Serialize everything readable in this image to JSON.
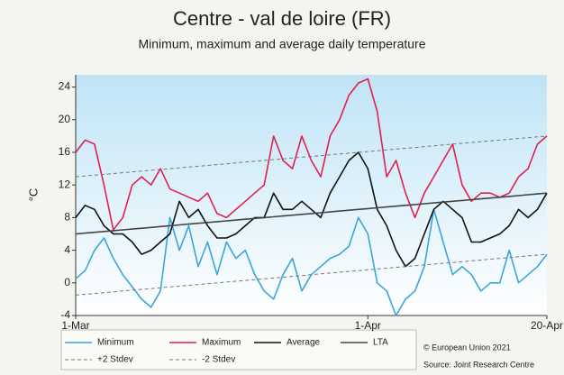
{
  "chart_data": {
    "type": "line",
    "title": "Centre - val de loire (FR)",
    "subtitle": "Minimum, maximum and average daily temperature",
    "y_label": "°C",
    "categories": [
      "1-Mar",
      null,
      null,
      null,
      null,
      null,
      null,
      null,
      null,
      null,
      null,
      null,
      null,
      null,
      null,
      null,
      null,
      null,
      null,
      null,
      null,
      null,
      null,
      null,
      null,
      null,
      null,
      null,
      null,
      null,
      null,
      "1-Apr",
      null,
      null,
      null,
      null,
      null,
      null,
      null,
      null,
      null,
      null,
      null,
      null,
      null,
      null,
      null,
      null,
      null,
      null,
      "20-Apr"
    ],
    "ylim": [
      -4,
      25.5
    ],
    "yticks": [
      -4,
      0,
      4,
      8,
      12,
      16,
      20,
      24
    ],
    "grid": false,
    "series": [
      {
        "name": "Minimum",
        "color": "#3aa6dc",
        "dashed": false,
        "values": [
          0.5,
          1.5,
          4,
          5.5,
          3,
          1,
          -0.5,
          -2,
          -3,
          -1,
          8,
          4,
          7,
          2,
          5,
          1,
          5,
          3,
          4,
          1,
          -1,
          -2,
          1,
          3,
          -1,
          1,
          2,
          3,
          3.5,
          4.5,
          8,
          6,
          0,
          -1,
          -4,
          -2,
          -1,
          2,
          9,
          5,
          1,
          2,
          1,
          -1,
          0,
          0,
          4,
          0,
          1,
          2,
          3.5
        ]
      },
      {
        "name": "Maximum",
        "color": "#e0204f",
        "dashed": false,
        "values": [
          16,
          17.5,
          17,
          12,
          6.5,
          8,
          12,
          13,
          12,
          14,
          11.5,
          11,
          10.5,
          10,
          11,
          8.5,
          8,
          9,
          10,
          11,
          12,
          18,
          15,
          14,
          18,
          15,
          13,
          18,
          20,
          23,
          24.5,
          25,
          21,
          13,
          15,
          11,
          8,
          11,
          13,
          15,
          17,
          12,
          10,
          11,
          11,
          10.5,
          11,
          13,
          14,
          17,
          18
        ]
      },
      {
        "name": "Average",
        "color": "#111111",
        "dashed": false,
        "values": [
          8,
          9.5,
          9,
          7,
          6,
          6,
          5,
          3.5,
          4,
          5,
          6,
          10,
          8,
          9,
          7,
          5.5,
          5.5,
          6,
          7,
          8,
          8,
          11,
          9,
          9,
          10,
          9,
          8,
          11,
          13,
          15,
          16,
          14,
          9,
          7,
          4,
          2,
          3,
          6,
          9,
          10,
          9,
          8,
          5,
          5,
          5.5,
          6,
          7,
          9,
          8,
          9,
          11
        ]
      },
      {
        "name": "LTA",
        "color": "#444444",
        "dashed": false,
        "values": [
          6,
          6.1,
          6.2,
          6.3,
          6.4,
          6.5,
          6.6,
          6.7,
          6.8,
          6.9,
          7,
          7.1,
          7.2,
          7.3,
          7.4,
          7.5,
          7.6,
          7.7,
          7.8,
          7.9,
          8,
          8.1,
          8.2,
          8.3,
          8.4,
          8.5,
          8.6,
          8.7,
          8.8,
          8.9,
          9,
          9.1,
          9.2,
          9.3,
          9.4,
          9.5,
          9.6,
          9.7,
          9.8,
          9.9,
          10,
          10.1,
          10.2,
          10.3,
          10.4,
          10.5,
          10.6,
          10.7,
          10.8,
          10.9,
          11
        ]
      },
      {
        "name": "+2 Stdev",
        "color": "#777777",
        "dashed": true,
        "values": [
          13,
          13.1,
          13.2,
          13.3,
          13.4,
          13.5,
          13.6,
          13.7,
          13.8,
          13.9,
          14,
          14.1,
          14.2,
          14.3,
          14.4,
          14.5,
          14.6,
          14.7,
          14.8,
          14.9,
          15,
          15.1,
          15.2,
          15.3,
          15.4,
          15.5,
          15.6,
          15.7,
          15.8,
          15.9,
          16,
          16.1,
          16.2,
          16.3,
          16.4,
          16.5,
          16.6,
          16.7,
          16.8,
          16.9,
          17,
          17.1,
          17.2,
          17.3,
          17.4,
          17.5,
          17.6,
          17.7,
          17.8,
          17.9,
          18
        ]
      },
      {
        "name": "-2 Stdev",
        "color": "#777777",
        "dashed": true,
        "values": [
          -1.5,
          -1.4,
          -1.3,
          -1.2,
          -1.1,
          -1,
          -0.9,
          -0.8,
          -0.7,
          -0.6,
          -0.5,
          -0.4,
          -0.3,
          -0.2,
          -0.1,
          0,
          0.1,
          0.2,
          0.3,
          0.4,
          0.5,
          0.6,
          0.7,
          0.8,
          0.9,
          1,
          1.1,
          1.2,
          1.3,
          1.4,
          1.5,
          1.6,
          1.7,
          1.8,
          1.9,
          2,
          2.1,
          2.2,
          2.3,
          2.4,
          2.5,
          2.6,
          2.7,
          2.8,
          2.9,
          3,
          3.1,
          3.2,
          3.3,
          3.4,
          3.5
        ]
      }
    ],
    "notes": [
      "© European Union 2021",
      "Source: Joint Research Centre"
    ]
  }
}
